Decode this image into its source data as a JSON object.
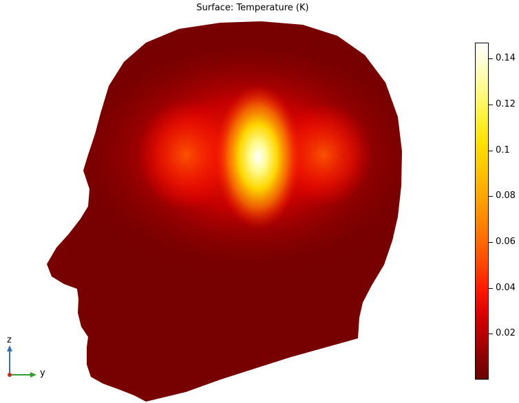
{
  "title": "Surface: Temperature (K)",
  "colorbar": {
    "ticks": [
      "0.14",
      "0.12",
      "0.1",
      "0.08",
      "0.06",
      "0.04",
      "0.02"
    ],
    "max": 0.147,
    "min": 0.0,
    "colormap": "heat"
  },
  "axes": {
    "z": "z",
    "y": "y"
  },
  "colors": {
    "head_base": "#770000",
    "hot_core": "#ffffff",
    "z_axis": "#3a6fb0",
    "y_axis": "#2fa02f",
    "x_axis": "#c03030"
  }
}
